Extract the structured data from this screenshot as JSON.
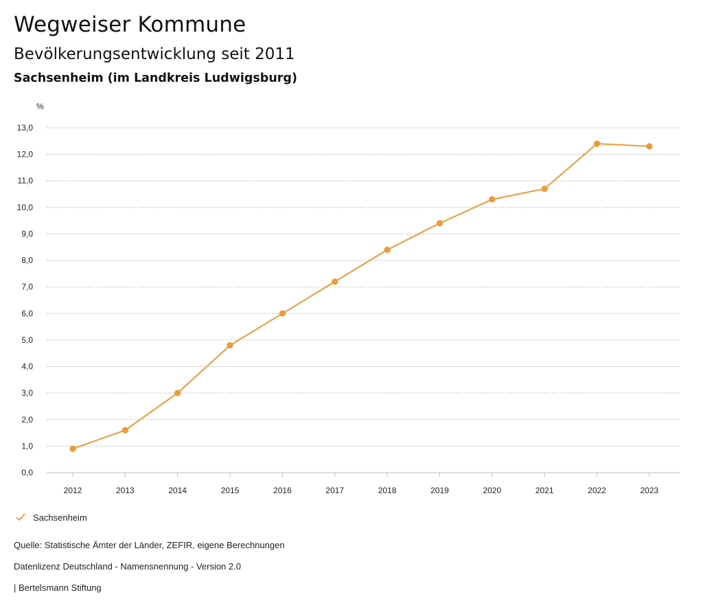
{
  "header": {
    "title": "Wegweiser Kommune",
    "subtitle": "Bevölkerungsentwicklung seit 2011",
    "region": "Sachsenheim (im Landkreis Ludwigsburg)"
  },
  "chart_data": {
    "type": "line",
    "ylabel": "%",
    "xlabel": "",
    "ylim": [
      0,
      13
    ],
    "yticks": [
      "0,0",
      "1,0",
      "2,0",
      "3,0",
      "4,0",
      "5,0",
      "6,0",
      "7,0",
      "8,0",
      "9,0",
      "10,0",
      "11,0",
      "12,0",
      "13,0"
    ],
    "categories": [
      "2012",
      "2013",
      "2014",
      "2015",
      "2016",
      "2017",
      "2018",
      "2019",
      "2020",
      "2021",
      "2022",
      "2023"
    ],
    "series": [
      {
        "name": "Sachsenheim",
        "color": "#EE9A35",
        "values": [
          0.9,
          1.6,
          3.0,
          4.8,
          6.0,
          7.2,
          8.4,
          9.4,
          10.3,
          10.7,
          12.4,
          12.3
        ]
      }
    ],
    "grid": true,
    "legend": "bottom-left"
  },
  "legend": {
    "label": "Sachsenheim",
    "icon": "check-icon"
  },
  "footer": {
    "source": "Quelle: Statistische Ämter der Länder, ZEFIR, eigene Berechnungen",
    "license": "Datenlizenz Deutschland - Namensnennung - Version 2.0",
    "publisher": "| Bertelsmann Stiftung"
  }
}
